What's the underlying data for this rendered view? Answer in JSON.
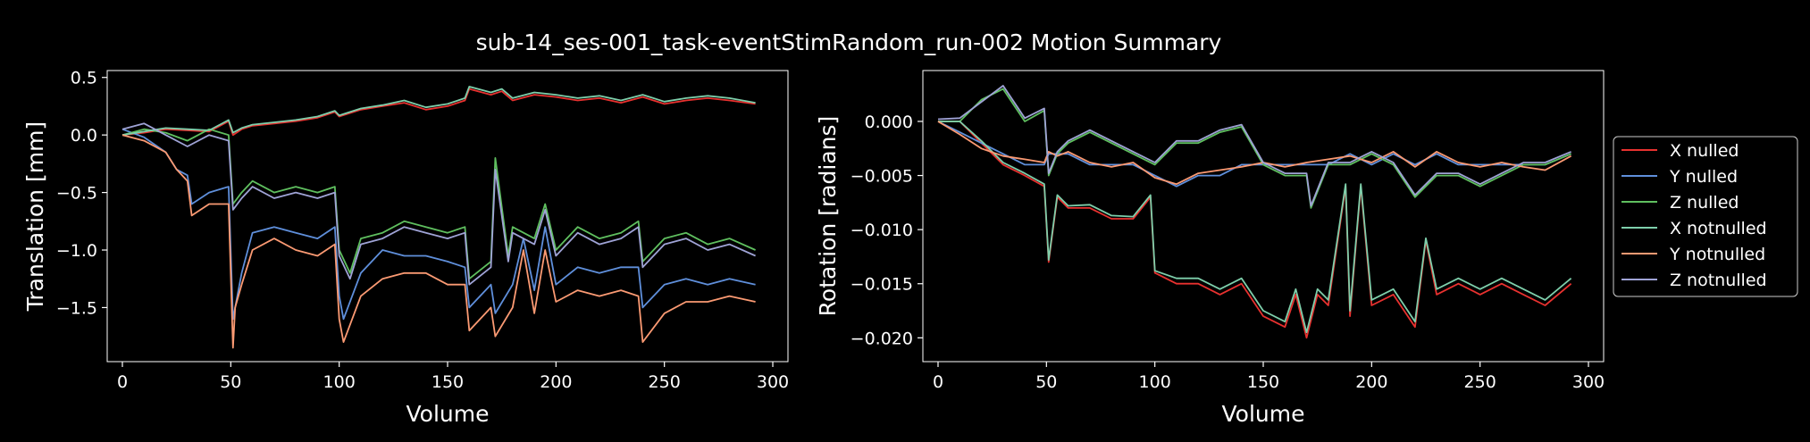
{
  "title": "sub-14_ses-001_task-eventStimRandom_run-002 Motion Summary",
  "chart_data": [
    {
      "type": "line",
      "xlabel": "Volume",
      "ylabel": "Translation [mm]",
      "xlim": [
        -7,
        307
      ],
      "ylim": [
        -1.97,
        0.56
      ],
      "xticks": [
        0,
        50,
        100,
        150,
        200,
        250,
        300
      ],
      "yticks": [
        -1.5,
        -1.0,
        -0.5,
        0.0,
        0.5
      ],
      "ytick_labels": [
        "−1.5",
        "−1.0",
        "−0.5",
        "0.0",
        "0.5"
      ],
      "grid": false,
      "series": [
        {
          "name": "X nulled",
          "color": "#e8312f",
          "x": [
            0,
            10,
            20,
            30,
            40,
            49,
            51,
            55,
            60,
            70,
            80,
            90,
            98,
            100,
            110,
            120,
            130,
            140,
            150,
            158,
            160,
            170,
            175,
            180,
            190,
            200,
            210,
            220,
            230,
            240,
            250,
            260,
            270,
            280,
            292
          ],
          "y": [
            0.0,
            0.02,
            0.05,
            0.04,
            0.03,
            0.12,
            0.0,
            0.05,
            0.08,
            0.1,
            0.12,
            0.15,
            0.2,
            0.16,
            0.22,
            0.25,
            0.28,
            0.22,
            0.25,
            0.3,
            0.4,
            0.35,
            0.38,
            0.3,
            0.35,
            0.33,
            0.3,
            0.32,
            0.28,
            0.33,
            0.27,
            0.3,
            0.32,
            0.3,
            0.27
          ]
        },
        {
          "name": "Y nulled",
          "color": "#5f8fdb",
          "x": [
            0,
            10,
            20,
            25,
            30,
            32,
            40,
            49,
            51,
            55,
            60,
            70,
            80,
            90,
            98,
            100,
            102,
            110,
            120,
            130,
            140,
            150,
            158,
            160,
            170,
            172,
            180,
            185,
            190,
            195,
            200,
            210,
            220,
            230,
            238,
            240,
            250,
            260,
            270,
            280,
            292
          ],
          "y": [
            0.05,
            -0.02,
            -0.15,
            -0.3,
            -0.35,
            -0.6,
            -0.5,
            -0.45,
            -1.6,
            -1.2,
            -0.85,
            -0.8,
            -0.85,
            -0.9,
            -0.8,
            -1.4,
            -1.6,
            -1.2,
            -1.0,
            -1.05,
            -1.05,
            -1.1,
            -1.15,
            -1.5,
            -1.3,
            -1.55,
            -1.3,
            -0.9,
            -1.35,
            -0.8,
            -1.3,
            -1.15,
            -1.2,
            -1.15,
            -1.15,
            -1.5,
            -1.3,
            -1.25,
            -1.3,
            -1.25,
            -1.3
          ]
        },
        {
          "name": "Z nulled",
          "color": "#5fbf5f",
          "x": [
            0,
            10,
            20,
            30,
            40,
            49,
            51,
            55,
            60,
            70,
            80,
            90,
            98,
            100,
            105,
            110,
            120,
            130,
            140,
            150,
            158,
            160,
            170,
            172,
            178,
            180,
            190,
            195,
            200,
            210,
            220,
            230,
            238,
            240,
            250,
            260,
            270,
            280,
            292
          ],
          "y": [
            0.0,
            0.05,
            0.02,
            -0.05,
            0.05,
            0.0,
            -0.6,
            -0.5,
            -0.4,
            -0.5,
            -0.45,
            -0.5,
            -0.45,
            -1.0,
            -1.2,
            -0.9,
            -0.85,
            -0.75,
            -0.8,
            -0.85,
            -0.8,
            -1.25,
            -1.1,
            -0.2,
            -1.05,
            -0.8,
            -0.9,
            -0.6,
            -1.0,
            -0.8,
            -0.9,
            -0.85,
            -0.75,
            -1.1,
            -0.9,
            -0.85,
            -0.95,
            -0.9,
            -1.0
          ]
        },
        {
          "name": "X notnulled",
          "color": "#7ecfab",
          "x": [
            0,
            10,
            20,
            30,
            40,
            49,
            51,
            55,
            60,
            70,
            80,
            90,
            98,
            100,
            110,
            120,
            130,
            140,
            150,
            158,
            160,
            170,
            175,
            180,
            190,
            200,
            210,
            220,
            230,
            240,
            250,
            260,
            270,
            280,
            292
          ],
          "y": [
            0.0,
            0.03,
            0.06,
            0.05,
            0.04,
            0.13,
            0.02,
            0.06,
            0.09,
            0.11,
            0.13,
            0.16,
            0.21,
            0.17,
            0.23,
            0.26,
            0.3,
            0.24,
            0.27,
            0.32,
            0.42,
            0.37,
            0.4,
            0.32,
            0.37,
            0.35,
            0.32,
            0.34,
            0.3,
            0.35,
            0.29,
            0.32,
            0.34,
            0.32,
            0.28
          ]
        },
        {
          "name": "Y notnulled",
          "color": "#fb9a73",
          "x": [
            0,
            10,
            20,
            25,
            30,
            32,
            40,
            49,
            51,
            52,
            55,
            60,
            70,
            80,
            90,
            98,
            100,
            102,
            110,
            120,
            130,
            140,
            150,
            158,
            160,
            170,
            172,
            180,
            185,
            190,
            195,
            200,
            210,
            220,
            230,
            238,
            240,
            250,
            260,
            270,
            280,
            292
          ],
          "y": [
            0.0,
            -0.05,
            -0.15,
            -0.3,
            -0.4,
            -0.7,
            -0.6,
            -0.6,
            -1.85,
            -1.5,
            -1.3,
            -1.0,
            -0.9,
            -1.0,
            -1.05,
            -0.95,
            -1.6,
            -1.8,
            -1.4,
            -1.25,
            -1.2,
            -1.2,
            -1.3,
            -1.3,
            -1.7,
            -1.5,
            -1.75,
            -1.5,
            -1.0,
            -1.55,
            -1.0,
            -1.45,
            -1.35,
            -1.4,
            -1.35,
            -1.4,
            -1.8,
            -1.55,
            -1.45,
            -1.45,
            -1.4,
            -1.45
          ]
        },
        {
          "name": "Z notnulled",
          "color": "#9fa3d6",
          "x": [
            0,
            10,
            20,
            30,
            40,
            49,
            51,
            55,
            60,
            70,
            80,
            90,
            98,
            100,
            105,
            110,
            120,
            130,
            140,
            150,
            158,
            160,
            170,
            172,
            178,
            180,
            190,
            195,
            200,
            210,
            220,
            230,
            238,
            240,
            250,
            260,
            270,
            280,
            292
          ],
          "y": [
            0.05,
            0.1,
            0.0,
            -0.1,
            0.0,
            -0.05,
            -0.65,
            -0.55,
            -0.45,
            -0.55,
            -0.5,
            -0.55,
            -0.5,
            -1.05,
            -1.25,
            -0.95,
            -0.9,
            -0.8,
            -0.85,
            -0.9,
            -0.85,
            -1.3,
            -1.15,
            -0.3,
            -1.1,
            -0.85,
            -0.95,
            -0.65,
            -1.05,
            -0.85,
            -0.95,
            -0.9,
            -0.8,
            -1.15,
            -0.95,
            -0.9,
            -1.0,
            -0.95,
            -1.05
          ]
        }
      ]
    },
    {
      "type": "line",
      "xlabel": "Volume",
      "ylabel": "Rotation [radians]",
      "xlim": [
        -7,
        307
      ],
      "ylim": [
        -0.0222,
        0.0047
      ],
      "xticks": [
        0,
        50,
        100,
        150,
        200,
        250,
        300
      ],
      "yticks": [
        -0.02,
        -0.015,
        -0.01,
        -0.005,
        0.0
      ],
      "ytick_labels": [
        "−0.020",
        "−0.015",
        "−0.010",
        "−0.005",
        "0.000"
      ],
      "grid": false,
      "series": [
        {
          "name": "X nulled",
          "color": "#e8312f",
          "x": [
            0,
            10,
            20,
            30,
            40,
            49,
            51,
            55,
            60,
            70,
            80,
            90,
            98,
            100,
            110,
            120,
            130,
            140,
            150,
            160,
            165,
            170,
            175,
            180,
            188,
            190,
            195,
            200,
            210,
            220,
            225,
            230,
            240,
            250,
            260,
            270,
            280,
            292
          ],
          "y": [
            0.0,
            0.0,
            -0.002,
            -0.004,
            -0.005,
            -0.006,
            -0.013,
            -0.007,
            -0.008,
            -0.008,
            -0.009,
            -0.009,
            -0.007,
            -0.014,
            -0.015,
            -0.015,
            -0.016,
            -0.015,
            -0.018,
            -0.019,
            -0.016,
            -0.02,
            -0.016,
            -0.017,
            -0.006,
            -0.018,
            -0.006,
            -0.017,
            -0.016,
            -0.019,
            -0.011,
            -0.016,
            -0.015,
            -0.016,
            -0.015,
            -0.016,
            -0.017,
            -0.015
          ]
        },
        {
          "name": "Y nulled",
          "color": "#5f8fdb",
          "x": [
            0,
            10,
            20,
            30,
            40,
            49,
            51,
            55,
            60,
            70,
            80,
            90,
            100,
            110,
            120,
            130,
            140,
            150,
            160,
            170,
            180,
            190,
            200,
            210,
            220,
            230,
            240,
            250,
            260,
            270,
            280,
            292
          ],
          "y": [
            0.0,
            -0.001,
            -0.002,
            -0.003,
            -0.004,
            -0.004,
            -0.003,
            -0.003,
            -0.003,
            -0.004,
            -0.004,
            -0.004,
            -0.005,
            -0.006,
            -0.005,
            -0.005,
            -0.004,
            -0.004,
            -0.004,
            -0.004,
            -0.004,
            -0.003,
            -0.004,
            -0.003,
            -0.004,
            -0.003,
            -0.004,
            -0.004,
            -0.004,
            -0.004,
            -0.004,
            -0.003
          ]
        },
        {
          "name": "Z nulled",
          "color": "#5fbf5f",
          "x": [
            0,
            10,
            20,
            30,
            40,
            49,
            51,
            55,
            60,
            70,
            80,
            90,
            100,
            110,
            120,
            130,
            140,
            150,
            160,
            170,
            172,
            180,
            190,
            200,
            210,
            220,
            230,
            240,
            250,
            260,
            270,
            280,
            292
          ],
          "y": [
            0.0,
            0.0,
            0.002,
            0.003,
            0.0,
            0.001,
            -0.005,
            -0.003,
            -0.002,
            -0.001,
            -0.002,
            -0.003,
            -0.004,
            -0.002,
            -0.002,
            -0.001,
            -0.0005,
            -0.004,
            -0.005,
            -0.005,
            -0.008,
            -0.004,
            -0.004,
            -0.003,
            -0.004,
            -0.007,
            -0.005,
            -0.005,
            -0.006,
            -0.005,
            -0.004,
            -0.004,
            -0.003
          ]
        },
        {
          "name": "X notnulled",
          "color": "#7ecfab",
          "x": [
            0,
            10,
            20,
            30,
            40,
            49,
            51,
            55,
            60,
            70,
            80,
            90,
            98,
            100,
            110,
            120,
            130,
            140,
            150,
            160,
            165,
            170,
            175,
            180,
            188,
            190,
            195,
            200,
            210,
            220,
            225,
            230,
            240,
            250,
            260,
            270,
            280,
            292
          ],
          "y": [
            0.0,
            0.0,
            -0.0018,
            -0.0038,
            -0.0048,
            -0.0058,
            -0.0128,
            -0.0068,
            -0.0078,
            -0.0077,
            -0.0087,
            -0.0088,
            -0.0068,
            -0.0138,
            -0.0145,
            -0.0145,
            -0.0155,
            -0.0145,
            -0.0175,
            -0.0185,
            -0.0155,
            -0.0195,
            -0.0155,
            -0.0165,
            -0.0058,
            -0.0175,
            -0.0058,
            -0.0165,
            -0.0155,
            -0.0185,
            -0.0108,
            -0.0155,
            -0.0145,
            -0.0155,
            -0.0145,
            -0.0155,
            -0.0165,
            -0.0145
          ]
        },
        {
          "name": "Y notnulled",
          "color": "#fb9a73",
          "x": [
            0,
            10,
            20,
            30,
            40,
            49,
            51,
            55,
            60,
            70,
            80,
            90,
            100,
            110,
            120,
            130,
            140,
            150,
            160,
            170,
            180,
            190,
            200,
            210,
            220,
            230,
            240,
            250,
            260,
            270,
            280,
            292
          ],
          "y": [
            0.0,
            -0.0012,
            -0.0025,
            -0.0032,
            -0.0035,
            -0.0038,
            -0.0028,
            -0.0032,
            -0.0028,
            -0.0038,
            -0.0042,
            -0.0038,
            -0.0052,
            -0.0058,
            -0.0048,
            -0.0045,
            -0.0042,
            -0.0038,
            -0.0042,
            -0.0038,
            -0.0035,
            -0.0032,
            -0.0038,
            -0.0028,
            -0.0042,
            -0.0028,
            -0.0038,
            -0.0042,
            -0.0038,
            -0.0042,
            -0.0045,
            -0.0032
          ]
        },
        {
          "name": "Z notnulled",
          "color": "#9fa3d6",
          "x": [
            0,
            10,
            20,
            30,
            40,
            49,
            51,
            55,
            60,
            70,
            80,
            90,
            100,
            110,
            120,
            130,
            140,
            150,
            160,
            170,
            172,
            180,
            190,
            200,
            210,
            220,
            230,
            240,
            250,
            260,
            270,
            280,
            292
          ],
          "y": [
            0.0002,
            0.0003,
            0.0018,
            0.0033,
            0.0003,
            0.0012,
            -0.0048,
            -0.0028,
            -0.0018,
            -0.0008,
            -0.0018,
            -0.0028,
            -0.0038,
            -0.0018,
            -0.0018,
            -0.0008,
            -0.0003,
            -0.0038,
            -0.0048,
            -0.0048,
            -0.0078,
            -0.0038,
            -0.0038,
            -0.0028,
            -0.0038,
            -0.0068,
            -0.0048,
            -0.0048,
            -0.0058,
            -0.0048,
            -0.0038,
            -0.0038,
            -0.0028
          ]
        }
      ]
    }
  ],
  "legend": {
    "placement": "outside-right",
    "entries": [
      "X nulled",
      "Y nulled",
      "Z nulled",
      "X notnulled",
      "Y notnulled",
      "Z notnulled"
    ]
  }
}
